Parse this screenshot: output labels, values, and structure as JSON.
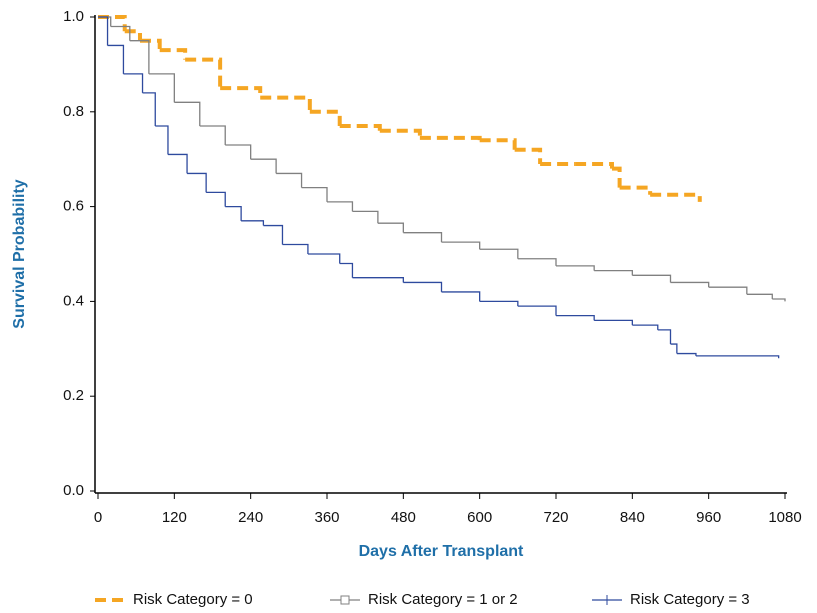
{
  "chart_data": {
    "type": "step",
    "x_label": "Days After Transplant",
    "y_label": "Survival Probability",
    "xlim": [
      0,
      1080
    ],
    "ylim": [
      0,
      1
    ],
    "xticks": [
      0,
      120,
      240,
      360,
      480,
      600,
      720,
      840,
      960,
      1080
    ],
    "yticks": [
      {
        "value": 0,
        "label": "0.0"
      },
      0.2,
      0.4,
      0.6,
      0.8,
      {
        "value": 1,
        "label": "1.0"
      }
    ],
    "grid": false,
    "legend": "bottom",
    "series": [
      {
        "name": "Risk Category = 0",
        "color": "#f5a623",
        "style": "dashed",
        "x": [
          0,
          42,
          66,
          97,
          137,
          192,
          255,
          333,
          380,
          443,
          506,
          600,
          655,
          695,
          750,
          808,
          820,
          868,
          946
        ],
        "values": [
          1.0,
          0.97,
          0.95,
          0.93,
          0.91,
          0.85,
          0.83,
          0.8,
          0.77,
          0.76,
          0.745,
          0.74,
          0.72,
          0.69,
          0.69,
          0.68,
          0.64,
          0.625,
          0.61
        ]
      },
      {
        "name": "Risk Category = 1 or 2",
        "color": "#808080",
        "style": "square",
        "x": [
          0,
          20,
          50,
          80,
          120,
          160,
          200,
          240,
          280,
          320,
          360,
          400,
          440,
          480,
          540,
          600,
          660,
          720,
          780,
          840,
          900,
          960,
          1020,
          1060,
          1080
        ],
        "values": [
          1.0,
          0.98,
          0.95,
          0.88,
          0.82,
          0.77,
          0.73,
          0.7,
          0.67,
          0.64,
          0.61,
          0.59,
          0.565,
          0.545,
          0.525,
          0.51,
          0.49,
          0.475,
          0.465,
          0.455,
          0.44,
          0.43,
          0.415,
          0.405,
          0.4
        ]
      },
      {
        "name": "Risk Category = 3",
        "color": "#2e4a9e",
        "style": "plus",
        "x": [
          0,
          15,
          40,
          70,
          90,
          110,
          140,
          170,
          200,
          225,
          260,
          290,
          330,
          380,
          400,
          480,
          540,
          600,
          660,
          720,
          780,
          840,
          880,
          900,
          910,
          940,
          1070
        ],
        "values": [
          1.0,
          0.94,
          0.88,
          0.84,
          0.77,
          0.71,
          0.67,
          0.63,
          0.6,
          0.57,
          0.56,
          0.52,
          0.5,
          0.48,
          0.45,
          0.44,
          0.42,
          0.4,
          0.39,
          0.37,
          0.36,
          0.35,
          0.34,
          0.31,
          0.29,
          0.285,
          0.28
        ]
      }
    ]
  }
}
